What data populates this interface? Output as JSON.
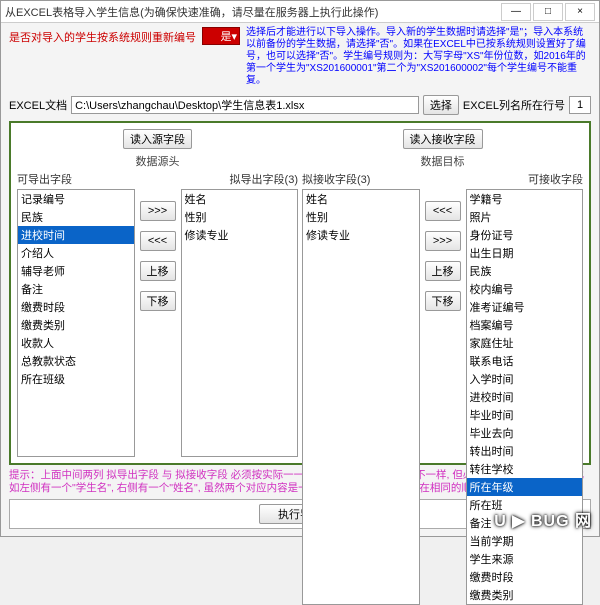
{
  "titlebar": {
    "title": "从EXCEL表格导入学生信息(为确保快速准确，请尽量在服务器上执行此操作)",
    "min": "—",
    "max": "□",
    "close": "×"
  },
  "top": {
    "red_label": "是否对导入的学生按系统规则重新编号",
    "select_value": "是",
    "select_arrow": "▾",
    "blue_note": "选择后才能进行以下导入操作。导入新的学生数据时请选择\"是\"；导入本系统以前备份的学生数据，请选择\"否\"。如果在EXCEL中已按系统规则设置好了编号，也可以选择\"否\"。学生编号规则为：大写字母\"XS\"年份位数，如2016年的第一个学生为\"XS201600001\"第二个为\"XS201600002\"每个学生编号不能重复。"
  },
  "path": {
    "label": "EXCEL文档",
    "value": "C:\\Users\\zhangchau\\Desktop\\学生信息表1.xlsx",
    "browse": "选择",
    "col_label": "EXCEL列名所在行号",
    "col_value": "1"
  },
  "buttons": {
    "read_src": "读入源字段",
    "read_tgt": "读入接收字段",
    "fwd": ">>>",
    "back": "<<<",
    "up": "上移",
    "down": "下移",
    "exec": "执行导入"
  },
  "labels": {
    "src_head": "数据源头",
    "tgt_head": "数据目标",
    "can_out": "可导出字段",
    "to_out": "拟导出字段(3)",
    "to_in": "拟接收字段(3)",
    "can_in": "可接收字段"
  },
  "lists": {
    "can_out": [
      "记录编号",
      "民族",
      "进校时间",
      "介绍人",
      "辅导老师",
      "备注",
      "缴费时段",
      "缴费类别",
      "收款人",
      "总教款状态",
      "所在班级"
    ],
    "can_out_selected": 2,
    "to_out": [
      "姓名",
      "性别",
      "修读专业"
    ],
    "to_in": [
      "姓名",
      "性别",
      "修读专业"
    ],
    "can_in": [
      "学籍号",
      "照片",
      "身份证号",
      "出生日期",
      "民族",
      "校内编号",
      "准考证编号",
      "档案编号",
      "家庭住址",
      "联系电话",
      "入学时间",
      "进校时间",
      "毕业时间",
      "毕业去向",
      "转出时间",
      "转往学校",
      "所在年级",
      "所在班",
      "备注",
      "当前学期",
      "学生来源",
      "缴费时段",
      "缴费类别"
    ],
    "can_in_selected": 16
  },
  "hint": "提示：上面中间两列 拟导出字段 与 拟接收字段 必须按实际一一对应, 两边字段名称可以不一样, 但必须确保内容上的对应. 比如左侧有一个\"学生名\", 右侧有一个\"姓名\", 虽然两个对应内容是一样的, 在列表中就应当处在相同的顺序号上.",
  "watermark": "U ▶ BUG 网"
}
